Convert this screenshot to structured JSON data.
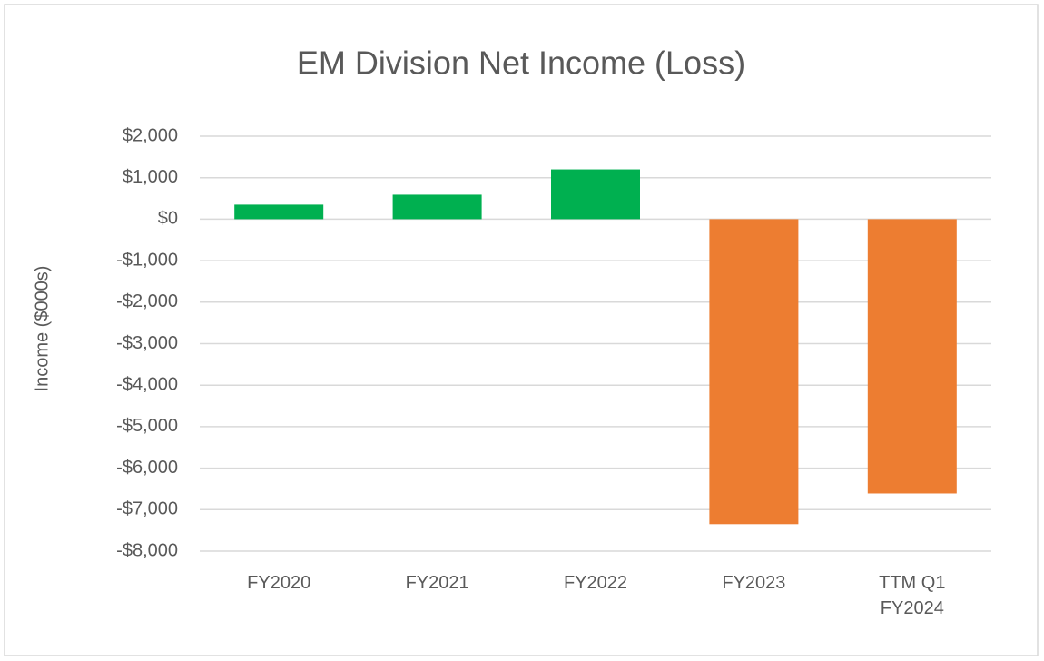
{
  "chart_data": {
    "type": "bar",
    "title": "EM Division Net Income (Loss)",
    "y_label": "Income ($000s)",
    "categories": [
      "FY2020",
      "FY2021",
      "FY2022",
      "FY2023",
      "TTM Q1 FY2024"
    ],
    "values": [
      350,
      590,
      1200,
      -7350,
      -6610
    ],
    "colors": [
      "#00b050",
      "#00b050",
      "#00b050",
      "#ed7d31",
      "#ed7d31"
    ],
    "ylim": [
      -8000,
      2000
    ],
    "yticks": [
      {
        "value": 2000,
        "label": "$2,000"
      },
      {
        "value": 1000,
        "label": "$1,000"
      },
      {
        "value": 0,
        "label": "$0"
      },
      {
        "value": -1000,
        "label": "-$1,000"
      },
      {
        "value": -2000,
        "label": "-$2,000"
      },
      {
        "value": -3000,
        "label": "-$3,000"
      },
      {
        "value": -4000,
        "label": "-$4,000"
      },
      {
        "value": -5000,
        "label": "-$5,000"
      },
      {
        "value": -6000,
        "label": "-$6,000"
      },
      {
        "value": -7000,
        "label": "-$7,000"
      },
      {
        "value": -8000,
        "label": "-$8,000"
      }
    ],
    "grid": true
  }
}
